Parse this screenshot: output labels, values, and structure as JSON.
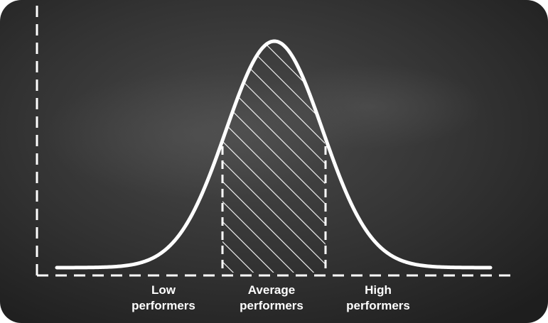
{
  "labels": {
    "low": {
      "line1": "Low",
      "line2": "performers"
    },
    "average": {
      "line1": "Average",
      "line2": "performers"
    },
    "high": {
      "line1": "High",
      "line2": "performers"
    }
  },
  "colors": {
    "board": "#2a2a2a",
    "chalk": "#ffffff"
  },
  "icons": {
    "curve": "bell-curve",
    "hatch": "diagonal-hatch"
  }
}
